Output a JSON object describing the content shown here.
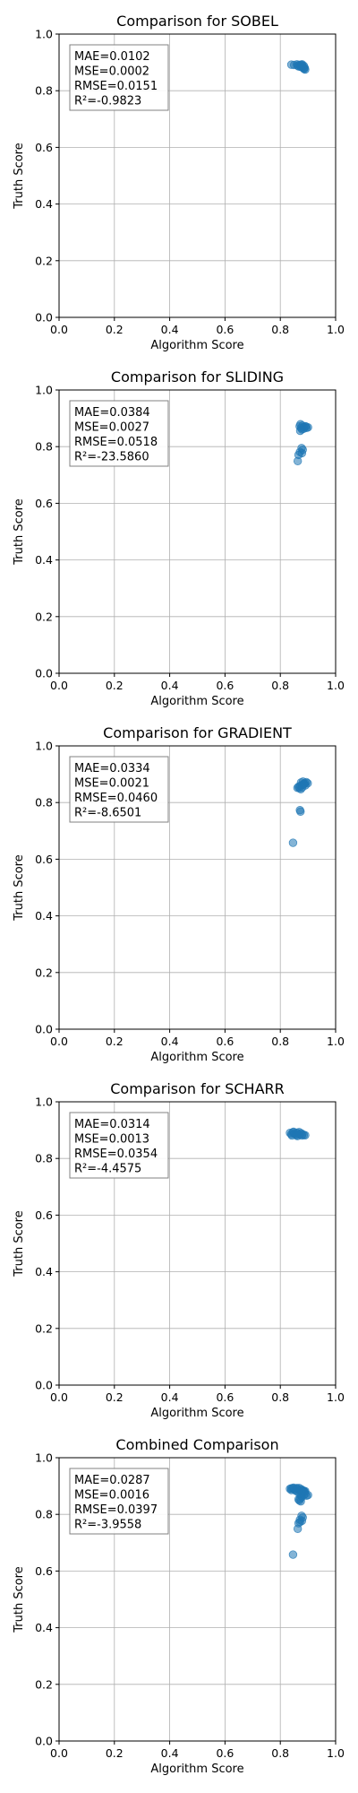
{
  "chart_data": [
    {
      "type": "scatter",
      "title": "Comparison for SOBEL",
      "xlabel": "Algorithm Score",
      "ylabel": "Truth Score",
      "xlim": [
        0,
        1
      ],
      "ylim": [
        0,
        1
      ],
      "grid": true,
      "xticks": [
        "0.0",
        "0.2",
        "0.4",
        "0.6",
        "0.8",
        "1.0"
      ],
      "yticks": [
        "0.0",
        "0.2",
        "0.4",
        "0.6",
        "0.8",
        "1.0"
      ],
      "stats": [
        "MAE=0.0102",
        "MSE=0.0002",
        "RMSE=0.0151",
        "R²=-0.9823"
      ],
      "stats_placement": "top-left",
      "color": "#1f77b4",
      "points": [
        [
          0.84,
          0.892
        ],
        [
          0.85,
          0.891
        ],
        [
          0.86,
          0.893
        ],
        [
          0.862,
          0.889
        ],
        [
          0.868,
          0.891
        ],
        [
          0.872,
          0.887
        ],
        [
          0.875,
          0.892
        ],
        [
          0.878,
          0.89
        ],
        [
          0.88,
          0.886
        ],
        [
          0.882,
          0.883
        ],
        [
          0.884,
          0.879
        ],
        [
          0.886,
          0.877
        ],
        [
          0.888,
          0.881
        ],
        [
          0.89,
          0.875
        ],
        [
          0.885,
          0.888
        ],
        [
          0.874,
          0.884
        ],
        [
          0.866,
          0.886
        ],
        [
          0.879,
          0.893
        ]
      ]
    },
    {
      "type": "scatter",
      "title": "Comparison for SLIDING",
      "xlabel": "Algorithm Score",
      "ylabel": "Truth Score",
      "xlim": [
        0,
        1
      ],
      "ylim": [
        0,
        1
      ],
      "grid": true,
      "xticks": [
        "0.0",
        "0.2",
        "0.4",
        "0.6",
        "0.8",
        "1.0"
      ],
      "yticks": [
        "0.0",
        "0.2",
        "0.4",
        "0.6",
        "0.8",
        "1.0"
      ],
      "stats": [
        "MAE=0.0384",
        "MSE=0.0027",
        "RMSE=0.0518",
        "R²=-23.5860"
      ],
      "stats_placement": "top-left",
      "color": "#1f77b4",
      "points": [
        [
          0.87,
          0.872
        ],
        [
          0.875,
          0.866
        ],
        [
          0.88,
          0.874
        ],
        [
          0.885,
          0.869
        ],
        [
          0.89,
          0.872
        ],
        [
          0.895,
          0.866
        ],
        [
          0.878,
          0.861
        ],
        [
          0.872,
          0.856
        ],
        [
          0.884,
          0.863
        ],
        [
          0.893,
          0.871
        ],
        [
          0.9,
          0.868
        ],
        [
          0.873,
          0.879
        ],
        [
          0.877,
          0.795
        ],
        [
          0.881,
          0.789
        ],
        [
          0.871,
          0.781
        ],
        [
          0.878,
          0.777
        ],
        [
          0.866,
          0.771
        ],
        [
          0.863,
          0.749
        ]
      ]
    },
    {
      "type": "scatter",
      "title": "Comparison for GRADIENT",
      "xlabel": "Algorithm Score",
      "ylabel": "Truth Score",
      "xlim": [
        0,
        1
      ],
      "ylim": [
        0,
        1
      ],
      "grid": true,
      "xticks": [
        "0.0",
        "0.2",
        "0.4",
        "0.6",
        "0.8",
        "1.0"
      ],
      "yticks": [
        "0.0",
        "0.2",
        "0.4",
        "0.6",
        "0.8",
        "1.0"
      ],
      "stats": [
        "MAE=0.0334",
        "MSE=0.0021",
        "RMSE=0.0460",
        "R²=-8.6501"
      ],
      "stats_placement": "top-left",
      "color": "#1f77b4",
      "points": [
        [
          0.875,
          0.871
        ],
        [
          0.882,
          0.874
        ],
        [
          0.889,
          0.869
        ],
        [
          0.894,
          0.872
        ],
        [
          0.899,
          0.868
        ],
        [
          0.886,
          0.865
        ],
        [
          0.879,
          0.862
        ],
        [
          0.872,
          0.859
        ],
        [
          0.866,
          0.856
        ],
        [
          0.869,
          0.851
        ],
        [
          0.874,
          0.847
        ],
        [
          0.879,
          0.853
        ],
        [
          0.884,
          0.866
        ],
        [
          0.891,
          0.861
        ],
        [
          0.862,
          0.852
        ],
        [
          0.871,
          0.773
        ],
        [
          0.873,
          0.768
        ],
        [
          0.846,
          0.658
        ]
      ]
    },
    {
      "type": "scatter",
      "title": "Comparison for SCHARR",
      "xlabel": "Algorithm Score",
      "ylabel": "Truth Score",
      "xlim": [
        0,
        1
      ],
      "ylim": [
        0,
        1
      ],
      "grid": true,
      "xticks": [
        "0.0",
        "0.2",
        "0.4",
        "0.6",
        "0.8",
        "1.0"
      ],
      "yticks": [
        "0.0",
        "0.2",
        "0.4",
        "0.6",
        "0.8",
        "1.0"
      ],
      "stats": [
        "MAE=0.0314",
        "MSE=0.0013",
        "RMSE=0.0354",
        "R²=-4.4575"
      ],
      "stats_placement": "top-left",
      "color": "#1f77b4",
      "points": [
        [
          0.835,
          0.89
        ],
        [
          0.84,
          0.886
        ],
        [
          0.845,
          0.892
        ],
        [
          0.85,
          0.888
        ],
        [
          0.855,
          0.885
        ],
        [
          0.86,
          0.891
        ],
        [
          0.865,
          0.887
        ],
        [
          0.87,
          0.884
        ],
        [
          0.875,
          0.889
        ],
        [
          0.88,
          0.886
        ],
        [
          0.885,
          0.883
        ],
        [
          0.89,
          0.882
        ],
        [
          0.848,
          0.894
        ],
        [
          0.858,
          0.882
        ],
        [
          0.868,
          0.893
        ],
        [
          0.878,
          0.881
        ],
        [
          0.862,
          0.879
        ],
        [
          0.842,
          0.881
        ]
      ]
    },
    {
      "type": "scatter",
      "title": "Combined Comparison",
      "xlabel": "Algorithm Score",
      "ylabel": "Truth Score",
      "xlim": [
        0,
        1
      ],
      "ylim": [
        0,
        1
      ],
      "grid": true,
      "xticks": [
        "0.0",
        "0.2",
        "0.4",
        "0.6",
        "0.8",
        "1.0"
      ],
      "yticks": [
        "0.0",
        "0.2",
        "0.4",
        "0.6",
        "0.8",
        "1.0"
      ],
      "stats": [
        "MAE=0.0287",
        "MSE=0.0016",
        "RMSE=0.0397",
        "R²=-3.9558"
      ],
      "stats_placement": "top-left",
      "color": "#1f77b4",
      "points": [
        [
          0.835,
          0.89
        ],
        [
          0.84,
          0.886
        ],
        [
          0.845,
          0.892
        ],
        [
          0.85,
          0.888
        ],
        [
          0.855,
          0.885
        ],
        [
          0.86,
          0.891
        ],
        [
          0.865,
          0.887
        ],
        [
          0.87,
          0.884
        ],
        [
          0.875,
          0.889
        ],
        [
          0.88,
          0.886
        ],
        [
          0.885,
          0.883
        ],
        [
          0.89,
          0.882
        ],
        [
          0.848,
          0.894
        ],
        [
          0.858,
          0.882
        ],
        [
          0.868,
          0.893
        ],
        [
          0.878,
          0.881
        ],
        [
          0.84,
          0.892
        ],
        [
          0.86,
          0.893
        ],
        [
          0.882,
          0.883
        ],
        [
          0.888,
          0.879
        ],
        [
          0.87,
          0.872
        ],
        [
          0.875,
          0.866
        ],
        [
          0.88,
          0.874
        ],
        [
          0.885,
          0.869
        ],
        [
          0.89,
          0.872
        ],
        [
          0.895,
          0.866
        ],
        [
          0.9,
          0.868
        ],
        [
          0.878,
          0.861
        ],
        [
          0.872,
          0.856
        ],
        [
          0.866,
          0.853
        ],
        [
          0.869,
          0.849
        ],
        [
          0.874,
          0.846
        ],
        [
          0.877,
          0.795
        ],
        [
          0.881,
          0.789
        ],
        [
          0.871,
          0.781
        ],
        [
          0.878,
          0.777
        ],
        [
          0.871,
          0.773
        ],
        [
          0.866,
          0.769
        ],
        [
          0.863,
          0.749
        ],
        [
          0.846,
          0.658
        ]
      ]
    }
  ]
}
